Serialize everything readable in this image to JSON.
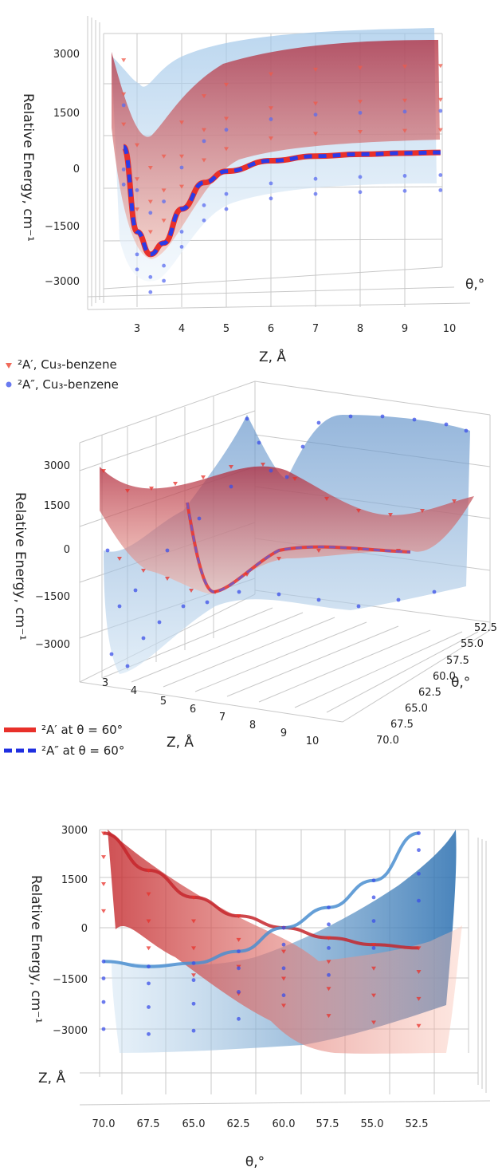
{
  "chart_data": [
    {
      "type": "surface3d",
      "view": "Z-axis front view",
      "xlabel": "Z, Å",
      "ylabel": "Relative Energy, cm⁻¹",
      "zlabel": "θ,°",
      "x_ticks": [
        "3",
        "4",
        "5",
        "6",
        "7",
        "8",
        "9",
        "10"
      ],
      "y_ticks": [
        "3000",
        "1500",
        "0",
        "−1500",
        "−3000"
      ],
      "x_range": [
        2.5,
        10
      ],
      "y_range": [
        -3000,
        3000
      ],
      "series": [
        {
          "name": "²A′ at θ = 60°",
          "color": "#e8302a",
          "x": [
            2.7,
            3.0,
            3.3,
            3.6,
            4.0,
            4.5,
            5.0,
            6.0,
            7.0,
            8.0,
            9.0,
            9.8
          ],
          "y": [
            550,
            -1700,
            -2300,
            -2000,
            -1100,
            -400,
            -100,
            180,
            300,
            350,
            380,
            400
          ]
        },
        {
          "name": "²A″ at θ = 60°",
          "color": "#1f2fe0",
          "x": [
            2.7,
            3.0,
            3.3,
            3.6,
            4.0,
            4.5,
            5.0,
            6.0,
            7.0,
            8.0,
            9.0,
            9.8
          ],
          "y": [
            550,
            -1700,
            -2300,
            -2000,
            -1100,
            -400,
            -100,
            180,
            300,
            350,
            380,
            400
          ]
        }
      ]
    },
    {
      "type": "surface3d",
      "view": "perspective",
      "xlabel": "Z, Å",
      "ylabel": "Relative Energy, cm⁻¹",
      "zlabel": "θ,°",
      "x_ticks": [
        "3",
        "4",
        "5",
        "6",
        "7",
        "8",
        "9",
        "10"
      ],
      "y_ticks": [
        "3000",
        "1500",
        "0",
        "−1500",
        "−3000"
      ],
      "z_ticks": [
        "52.5",
        "55.0",
        "57.5",
        "60.0",
        "62.5",
        "65.0",
        "67.5",
        "70.0"
      ],
      "legend": [
        {
          "label": "²A′, Cu₃-benzene",
          "marker": "triangle",
          "color": "#e8302a"
        },
        {
          "label": "²A″, Cu₃-benzene",
          "marker": "circle",
          "color": "#3b4fe8"
        },
        {
          "label": "²A′ at θ = 60°",
          "line": "solid",
          "color": "#e8302a"
        },
        {
          "label": "²A″ at θ = 60°",
          "line": "dashed",
          "color": "#1f2fe0"
        }
      ]
    },
    {
      "type": "surface3d",
      "view": "θ-axis front view",
      "xlabel": "θ,°",
      "ylabel": "Relative Energy, cm⁻¹",
      "zlabel": "Z, Å",
      "x_ticks": [
        "70.0",
        "67.5",
        "65.0",
        "62.5",
        "60.0",
        "57.5",
        "55.0",
        "52.5"
      ],
      "y_ticks": [
        "3000",
        "1500",
        "0",
        "−1500",
        "−3000"
      ],
      "x_range": [
        70.8,
        51.8
      ],
      "y_range": [
        -3000,
        3000
      ],
      "series": [
        {
          "name": "²A′",
          "color": "#e8302a",
          "x": [
            70,
            67.5,
            65,
            62.5,
            60,
            57.5,
            55,
            52.5
          ],
          "y": [
            2800,
            1700,
            900,
            350,
            0,
            -300,
            -500,
            -600
          ]
        },
        {
          "name": "²A″",
          "color": "#1f77b4",
          "x": [
            70,
            67.5,
            65,
            62.5,
            60,
            57.5,
            55,
            52.5
          ],
          "y": [
            -1000,
            -1150,
            -1050,
            -700,
            0,
            600,
            1400,
            2800
          ]
        }
      ]
    }
  ],
  "legend_top": {
    "a1": "²A′, Cu₃-benzene",
    "a2": "²A″, Cu₃-benzene"
  },
  "legend_mid": {
    "l1": "²A′ at θ = 60°",
    "l2": "²A″ at θ = 60°"
  },
  "colors": {
    "red": "#e8302a",
    "blue": "#3b4fe8",
    "surface_red": "#f08a78",
    "surface_blue": "#7fb0de"
  }
}
